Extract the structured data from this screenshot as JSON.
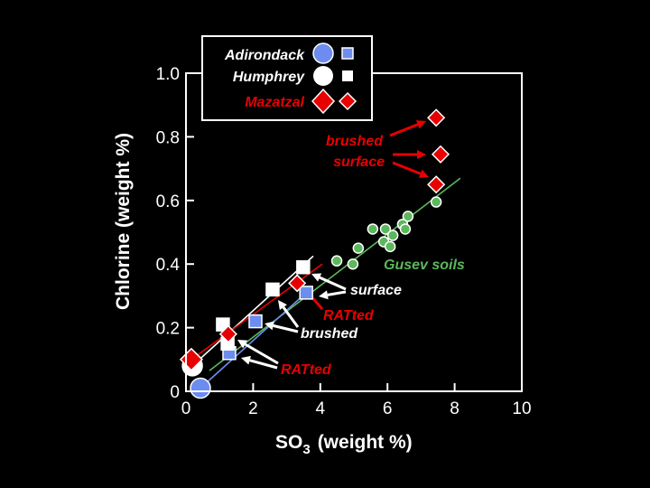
{
  "chart_data": {
    "type": "scatter",
    "title": "",
    "xlabel": "SO",
    "xlabel_subscript": "3",
    "xlabel_suffix": "(weight %)",
    "ylabel": "Chlorine (weight %)",
    "xlim": [
      0,
      10
    ],
    "ylim": [
      0,
      1.0
    ],
    "xticks": [
      "0",
      "2",
      "4",
      "6",
      "8",
      "10"
    ],
    "yticks": [
      "0",
      "0.2",
      "0.4",
      "0.6",
      "0.8",
      "1.0"
    ],
    "grid": false,
    "legend_position": "top-left",
    "legend": [
      {
        "label": "Adirondack",
        "color": "#6d8cf0"
      },
      {
        "label": "Humphrey",
        "color": "#ffffff"
      },
      {
        "label": "Mazatzal",
        "color": "#e80000"
      }
    ],
    "colors": {
      "adirondack": "#6d8cf0",
      "humphrey": "#ffffff",
      "mazatzal": "#e80000",
      "gusev": "#5cb85c"
    },
    "series": [
      {
        "name": "Adirondack",
        "marker": "circle",
        "points": [
          [
            0.43,
            0.01
          ]
        ]
      },
      {
        "name": "Adirondack",
        "marker": "square",
        "points": [
          [
            1.29,
            0.12
          ],
          [
            2.07,
            0.22
          ],
          [
            3.58,
            0.31
          ]
        ]
      },
      {
        "name": "Humphrey",
        "marker": "circle",
        "points": [
          [
            0.19,
            0.08
          ]
        ]
      },
      {
        "name": "Humphrey",
        "marker": "square",
        "points": [
          [
            1.1,
            0.21
          ],
          [
            1.24,
            0.15
          ],
          [
            2.58,
            0.32
          ],
          [
            3.49,
            0.39
          ]
        ]
      },
      {
        "name": "Mazatzal",
        "marker": "big-diamond",
        "points": [
          [
            0.16,
            0.1
          ]
        ]
      },
      {
        "name": "Mazatzal",
        "marker": "diamond",
        "points": [
          [
            1.26,
            0.18
          ],
          [
            3.31,
            0.34
          ],
          [
            7.45,
            0.86
          ],
          [
            7.58,
            0.745
          ],
          [
            7.45,
            0.65
          ]
        ]
      },
      {
        "name": "Gusev soils",
        "marker": "small-circle",
        "points": [
          [
            7.45,
            0.595
          ],
          [
            6.61,
            0.55
          ],
          [
            6.45,
            0.525
          ],
          [
            6.53,
            0.51
          ],
          [
            5.94,
            0.51
          ],
          [
            5.56,
            0.51
          ],
          [
            6.16,
            0.49
          ],
          [
            5.89,
            0.47
          ],
          [
            6.08,
            0.455
          ],
          [
            5.13,
            0.45
          ],
          [
            4.49,
            0.41
          ],
          [
            4.97,
            0.4
          ]
        ]
      }
    ],
    "trend_lines": [
      {
        "color": "#5cb85c",
        "from": [
          0.7,
          0.065
        ],
        "to": [
          8.17,
          0.67
        ]
      },
      {
        "color": "#ffffff",
        "from": [
          0.19,
          0.08
        ],
        "to": [
          3.79,
          0.425
        ]
      },
      {
        "color": "#e80000",
        "from": [
          0.16,
          0.1
        ],
        "to": [
          4.06,
          0.4
        ]
      },
      {
        "color": "#6d8cf0",
        "from": [
          0.43,
          0.01
        ],
        "to": [
          3.58,
          0.31
        ]
      }
    ],
    "annotations": {
      "brushed_surface_line1": "brushed",
      "brushed_surface_line2": "surface",
      "gusev": "Gusev soils",
      "surface": "surface",
      "ratted_upper": "RATted",
      "brushed": "brushed",
      "ratted_lower": "RATted"
    }
  }
}
